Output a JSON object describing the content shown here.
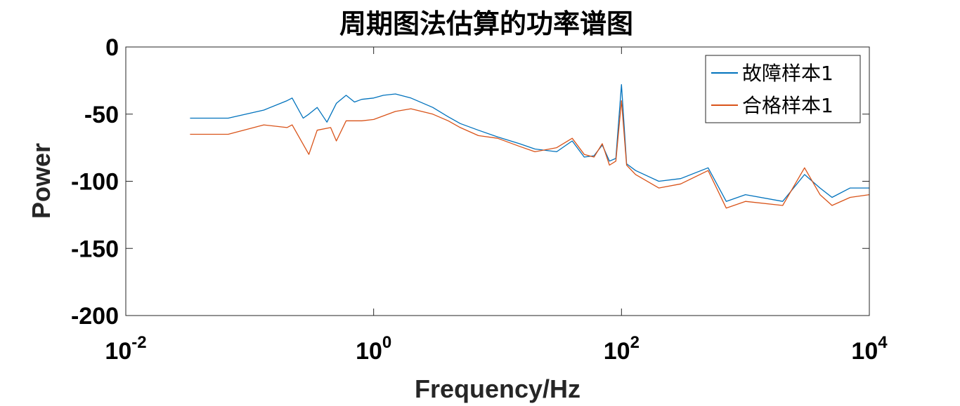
{
  "chart_data": {
    "type": "line",
    "title": "周期图法估算的功率谱图",
    "xlabel": "Frequency/Hz",
    "ylabel": "Power",
    "xscale": "log",
    "xlim": [
      0.01,
      10000
    ],
    "ylim": [
      -200,
      0
    ],
    "x_ticks": [
      0.01,
      1,
      100,
      10000
    ],
    "x_tick_labels": [
      {
        "base": "10",
        "exp": "-2"
      },
      {
        "base": "10",
        "exp": "0"
      },
      {
        "base": "10",
        "exp": "2"
      },
      {
        "base": "10",
        "exp": "4"
      }
    ],
    "y_ticks": [
      0,
      -50,
      -100,
      -150,
      -200
    ],
    "y_tick_labels": [
      "0",
      "-50",
      "-100",
      "-150",
      "-200"
    ],
    "grid": false,
    "legend_position": "top-right",
    "series": [
      {
        "name": "故障样本1",
        "color": "#0072BD",
        "points": [
          [
            0.033,
            -53
          ],
          [
            0.067,
            -53
          ],
          [
            0.13,
            -47
          ],
          [
            0.2,
            -40
          ],
          [
            0.22,
            -38
          ],
          [
            0.27,
            -53
          ],
          [
            0.3,
            -50
          ],
          [
            0.35,
            -45
          ],
          [
            0.42,
            -56
          ],
          [
            0.5,
            -42
          ],
          [
            0.6,
            -36
          ],
          [
            0.7,
            -41
          ],
          [
            0.8,
            -39
          ],
          [
            1.0,
            -38
          ],
          [
            1.2,
            -36
          ],
          [
            1.5,
            -35
          ],
          [
            2.0,
            -38
          ],
          [
            3.0,
            -45
          ],
          [
            4.0,
            -52
          ],
          [
            5.0,
            -57
          ],
          [
            7.0,
            -62
          ],
          [
            10.0,
            -67
          ],
          [
            15.0,
            -72
          ],
          [
            20.0,
            -76
          ],
          [
            30.0,
            -78
          ],
          [
            40.0,
            -70
          ],
          [
            50.0,
            -82
          ],
          [
            60.0,
            -81
          ],
          [
            70.0,
            -73
          ],
          [
            80.0,
            -85
          ],
          [
            90.0,
            -83
          ],
          [
            100.0,
            -28
          ],
          [
            110.0,
            -87
          ],
          [
            130.0,
            -92
          ],
          [
            200.0,
            -100
          ],
          [
            300.0,
            -98
          ],
          [
            500.0,
            -90
          ],
          [
            700.0,
            -115
          ],
          [
            1000.0,
            -110
          ],
          [
            2000.0,
            -115
          ],
          [
            3000.0,
            -95
          ],
          [
            4000.0,
            -105
          ],
          [
            5000.0,
            -112
          ],
          [
            7000.0,
            -105
          ],
          [
            10000.0,
            -105
          ]
        ]
      },
      {
        "name": "合格样本1",
        "color": "#D95319",
        "points": [
          [
            0.033,
            -65
          ],
          [
            0.067,
            -65
          ],
          [
            0.13,
            -58
          ],
          [
            0.2,
            -60
          ],
          [
            0.22,
            -58
          ],
          [
            0.3,
            -80
          ],
          [
            0.35,
            -62
          ],
          [
            0.45,
            -60
          ],
          [
            0.5,
            -70
          ],
          [
            0.6,
            -55
          ],
          [
            0.8,
            -55
          ],
          [
            1.0,
            -54
          ],
          [
            1.5,
            -48
          ],
          [
            2.0,
            -46
          ],
          [
            3.0,
            -50
          ],
          [
            4.0,
            -55
          ],
          [
            5.0,
            -60
          ],
          [
            7.0,
            -66
          ],
          [
            10.0,
            -68
          ],
          [
            15.0,
            -74
          ],
          [
            20.0,
            -78
          ],
          [
            30.0,
            -75
          ],
          [
            40.0,
            -68
          ],
          [
            50.0,
            -80
          ],
          [
            60.0,
            -82
          ],
          [
            70.0,
            -72
          ],
          [
            80.0,
            -88
          ],
          [
            90.0,
            -85
          ],
          [
            100.0,
            -40
          ],
          [
            110.0,
            -88
          ],
          [
            130.0,
            -95
          ],
          [
            200.0,
            -105
          ],
          [
            300.0,
            -102
          ],
          [
            500.0,
            -92
          ],
          [
            700.0,
            -120
          ],
          [
            1000.0,
            -115
          ],
          [
            2000.0,
            -118
          ],
          [
            3000.0,
            -90
          ],
          [
            4000.0,
            -110
          ],
          [
            5000.0,
            -118
          ],
          [
            7000.0,
            -112
          ],
          [
            10000.0,
            -110
          ]
        ]
      }
    ]
  }
}
